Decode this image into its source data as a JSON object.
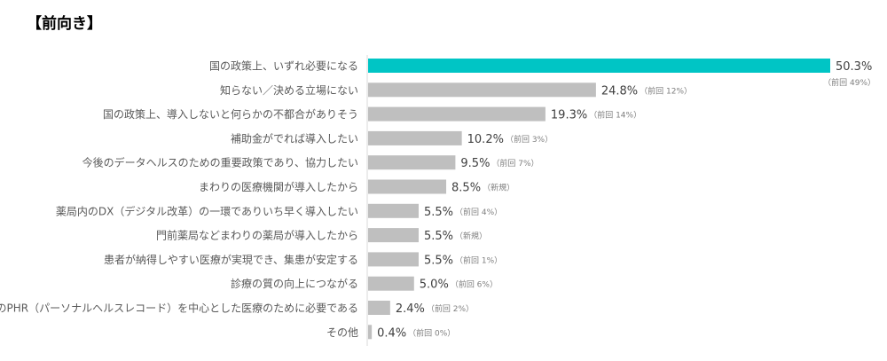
{
  "chart_data": {
    "type": "bar",
    "orientation": "horizontal",
    "title": "【前向き】",
    "categories": [
      "国の政策上、いずれ必要になる",
      "知らない／決める立場にない",
      "国の政策上、導入しないと何らかの不都合がありそう",
      "補助金がでれば導入したい",
      "今後のデータヘルスのための重要政策であり、協力したい",
      "まわりの医療機関が導入したから",
      "薬局内のDX（デジタル改革）の一環でありいち早く導入したい",
      "門前薬局などまわりの薬局が導入したから",
      "患者が納得しやすい医療が実現でき、集患が安定する",
      "診療の質の向上につながる",
      "今後のPHR（パーソナルヘルスレコード）を中心とした医療のために必要である",
      "その他"
    ],
    "values": [
      50.3,
      24.8,
      19.3,
      10.2,
      9.5,
      8.5,
      5.5,
      5.5,
      5.5,
      5.0,
      2.4,
      0.4
    ],
    "value_labels": [
      "50.3%",
      "24.8%",
      "19.3%",
      "10.2%",
      "9.5%",
      "8.5%",
      "5.5%",
      "5.5%",
      "5.5%",
      "5.0%",
      "2.4%",
      "0.4%"
    ],
    "notes": [
      "（前回 49%）",
      "（前回 12%）",
      "（前回 14%）",
      "（前回 3%）",
      "（前回 7%）",
      "（新規）",
      "（前回 4%）",
      "（新規）",
      "（前回 1%）",
      "（前回 6%）",
      "（前回 2%）",
      "（前回 0%）"
    ],
    "xlim": [
      0,
      50.3
    ],
    "grid": false,
    "colors": {
      "highlight": "#00C5C5",
      "bar": "#BFBFBF",
      "label": "#595959",
      "value": "#404040",
      "note": "#7F7F7F",
      "axis": "#D9D9D9"
    }
  }
}
